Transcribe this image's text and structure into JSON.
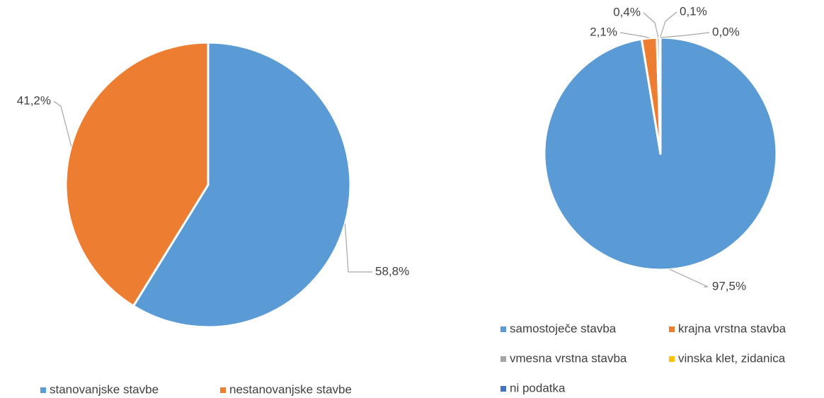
{
  "chart_data": [
    {
      "type": "pie",
      "categories": [
        "stanovanjske stavbe",
        "nestanovanjske stavbe"
      ],
      "values": [
        58.8,
        41.2
      ],
      "value_labels": [
        "58,8%",
        "41,2%"
      ],
      "colors": [
        "#5b9bd5",
        "#ed7d31"
      ],
      "legend": "bottom"
    },
    {
      "type": "pie",
      "categories": [
        "samostoječe stavba",
        "krajna vrstna stavba",
        "vmesna vrstna stavba",
        "vinska klet, zidanica",
        "ni podatka"
      ],
      "values": [
        97.5,
        2.1,
        0.4,
        0.1,
        0.0
      ],
      "value_labels": [
        "97,5%",
        "2,1%",
        "0,4%",
        "0,1%",
        "0,0%"
      ],
      "colors": [
        "#5b9bd5",
        "#ed7d31",
        "#a5a5a5",
        "#ffc000",
        "#4472c4"
      ],
      "legend": "bottom"
    }
  ]
}
